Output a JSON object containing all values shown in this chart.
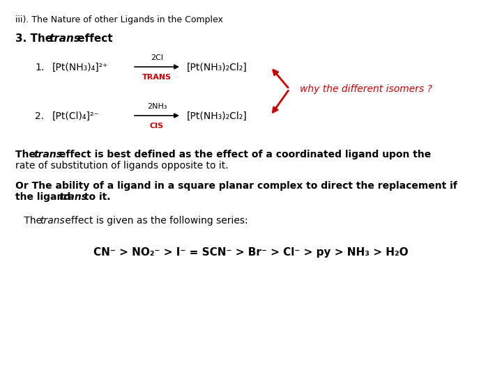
{
  "bg_color": "#ffffff",
  "red_color": "#cc0000",
  "black_color": "#000000",
  "title": "iii). The Nature of other Ligands in the Complex",
  "subtitle_pre": "3. The ",
  "subtitle_italic": "trans",
  "subtitle_post": " effect",
  "r1_left": "[Pt(NH₃)₄]²⁺",
  "r1_arrow_label": "2Cl",
  "r1_right": "[Pt(NH₃)₂Cl₂]",
  "r1_tag": "TRANS",
  "r2_left": "[Pt(Cl)₄]²⁻",
  "r2_arrow_label": "2NH₃",
  "r2_right": "[Pt(NH₃)₂Cl₂]",
  "r2_tag": "CIS",
  "annot_text": "why the different isomers ?",
  "p1_pre": "The ",
  "p1_italic": "trans",
  "p1_post": " effect is best defined as the effect of a coordinated ligand upon the",
  "p1_line2": "rate of substitution of ligands opposite to it.",
  "p2_line1": "Or The ability of a ligand in a square planar complex to direct the replacement if",
  "p2_pre": "the ligand ",
  "p2_italic": "trans",
  "p2_post": " to it.",
  "p3_pre": " The ",
  "p3_italic": "trans",
  "p3_post": " effect is given as the following series:",
  "series": "CN⁻ > NO₂⁻ > I⁻ = SCN⁻ > Br⁻ > Cl⁻ > py > NH₃ > H₂O"
}
